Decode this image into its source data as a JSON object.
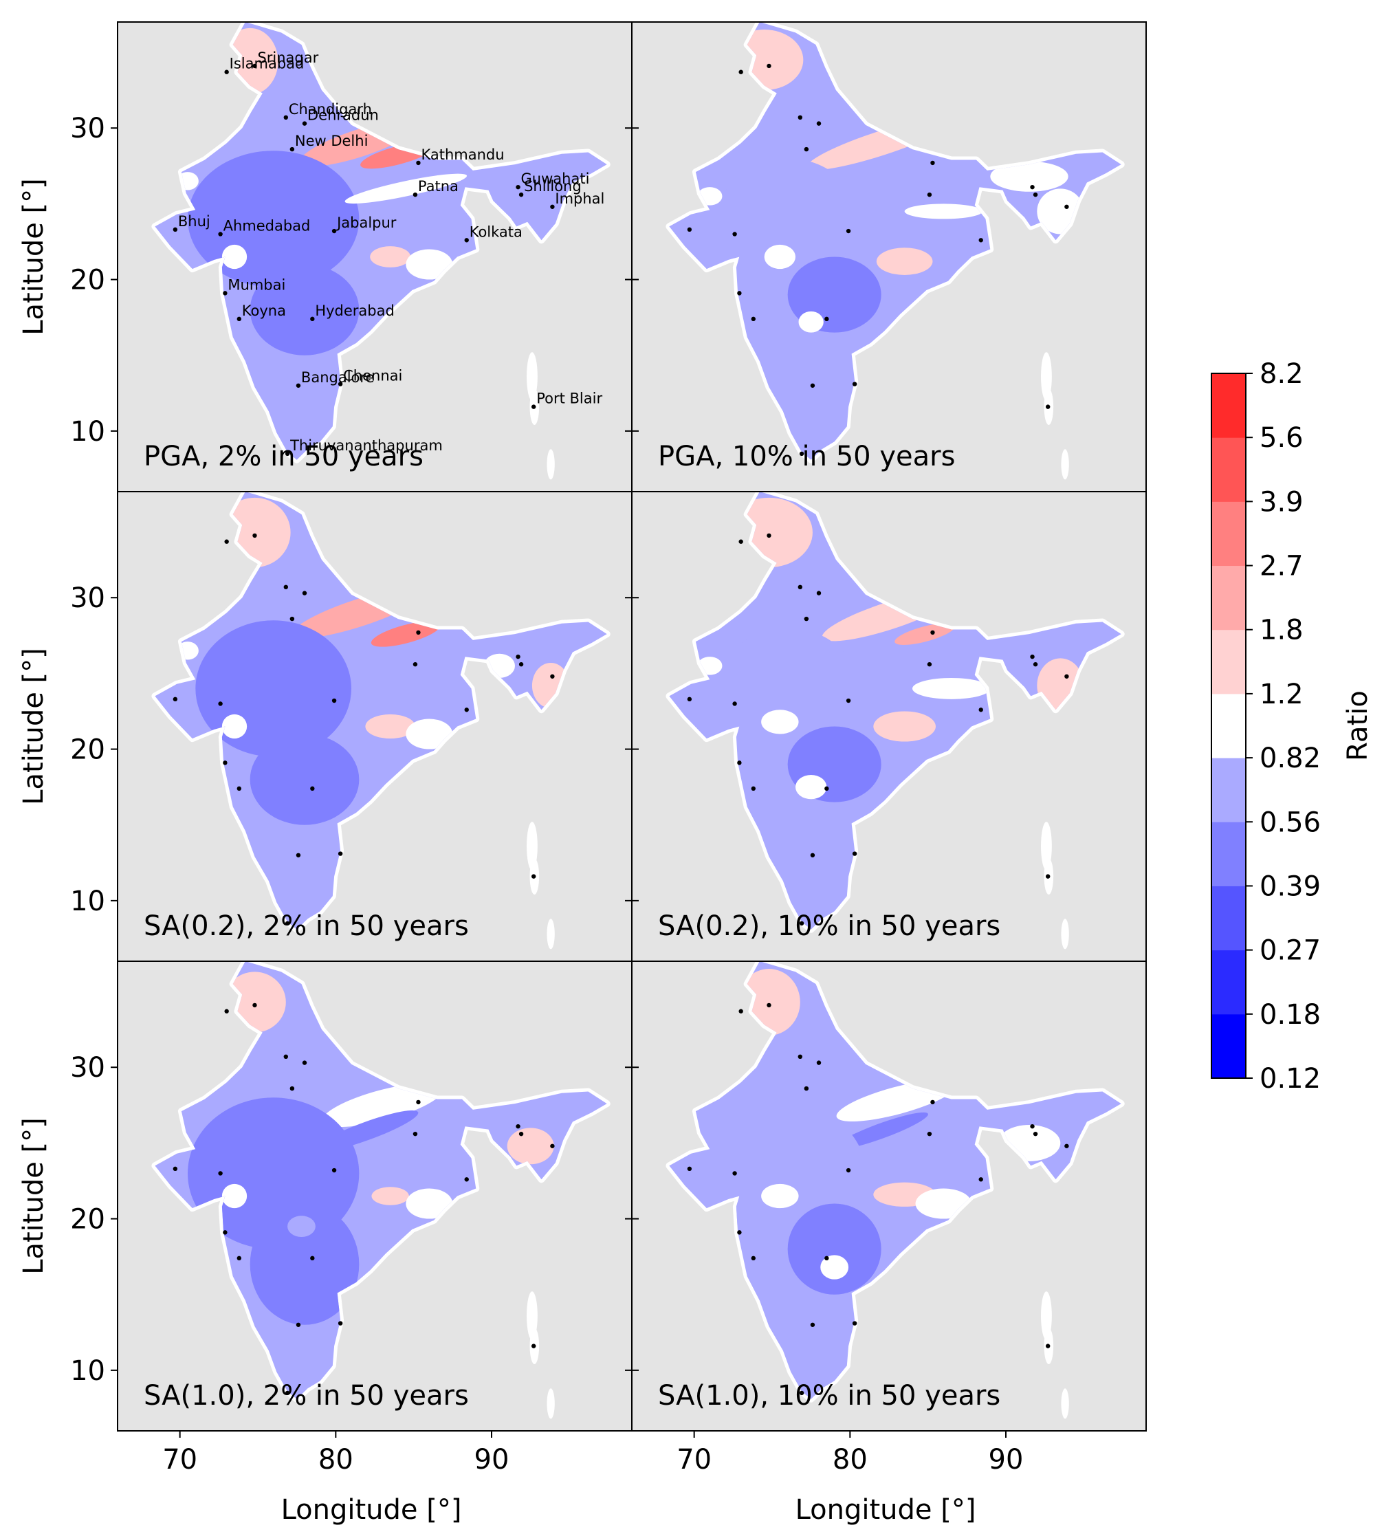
{
  "chart_data": {
    "type": "heatmap",
    "layout": "3 rows x 2 columns, shared axes",
    "xlabel": "Longitude [°]",
    "ylabel": "Latitude [°]",
    "xlim": [
      66,
      99
    ],
    "ylim": [
      6,
      37
    ],
    "xticks": [
      70,
      80,
      90
    ],
    "yticks": [
      10,
      20,
      30
    ],
    "panels": [
      {
        "title": "PGA, 2% in 50 years",
        "row": 0,
        "col": 0
      },
      {
        "title": "PGA, 10% in 50 years",
        "row": 0,
        "col": 1
      },
      {
        "title": "SA(0.2), 2% in 50 years",
        "row": 1,
        "col": 0
      },
      {
        "title": "SA(0.2), 10% in 50 years",
        "row": 1,
        "col": 1
      },
      {
        "title": "SA(1.0), 2% in 50 years",
        "row": 2,
        "col": 0
      },
      {
        "title": "SA(1.0), 10% in 50 years",
        "row": 2,
        "col": 1
      }
    ],
    "background_color": "#e4e4e4",
    "colorbar": {
      "label": "Ratio",
      "ticks": [
        "0.12",
        "0.18",
        "0.27",
        "0.39",
        "0.56",
        "0.82",
        "1.2",
        "1.8",
        "2.7",
        "3.9",
        "5.6",
        "8.2"
      ],
      "colors": [
        "#0000ff",
        "#2b2bff",
        "#5555ff",
        "#8080ff",
        "#aaaaff",
        "#ffffff",
        "#ffd2d2",
        "#ffaaaa",
        "#ff8080",
        "#ff5555",
        "#ff2b2b"
      ]
    },
    "cities": [
      {
        "name": "Srinagar",
        "lon": 74.8,
        "lat": 34.1
      },
      {
        "name": "Islamabad",
        "lon": 73.0,
        "lat": 33.7
      },
      {
        "name": "Chandigarh",
        "lon": 76.8,
        "lat": 30.7
      },
      {
        "name": "Dehradun",
        "lon": 78.0,
        "lat": 30.3
      },
      {
        "name": "New Delhi",
        "lon": 77.2,
        "lat": 28.6
      },
      {
        "name": "Kathmandu",
        "lon": 85.3,
        "lat": 27.7
      },
      {
        "name": "Patna",
        "lon": 85.1,
        "lat": 25.6
      },
      {
        "name": "Guwahati",
        "lon": 91.7,
        "lat": 26.1
      },
      {
        "name": "Shillong",
        "lon": 91.9,
        "lat": 25.6
      },
      {
        "name": "Imphal",
        "lon": 93.9,
        "lat": 24.8
      },
      {
        "name": "Bhuj",
        "lon": 69.7,
        "lat": 23.3
      },
      {
        "name": "Ahmedabad",
        "lon": 72.6,
        "lat": 23.0
      },
      {
        "name": "Jabalpur",
        "lon": 79.9,
        "lat": 23.2
      },
      {
        "name": "Kolkata",
        "lon": 88.4,
        "lat": 22.6
      },
      {
        "name": "Mumbai",
        "lon": 72.9,
        "lat": 19.1
      },
      {
        "name": "Koyna",
        "lon": 73.8,
        "lat": 17.4
      },
      {
        "name": "Hyderabad",
        "lon": 78.5,
        "lat": 17.4
      },
      {
        "name": "Bangalore",
        "lon": 77.6,
        "lat": 13.0
      },
      {
        "name": "Chennai",
        "lon": 80.3,
        "lat": 13.1
      },
      {
        "name": "Port Blair",
        "lon": 92.7,
        "lat": 11.6
      },
      {
        "name": "Thiruvananthapuram",
        "lon": 76.9,
        "lat": 8.5
      }
    ],
    "city_label_panel": "PGA, 2% in 50 years"
  }
}
